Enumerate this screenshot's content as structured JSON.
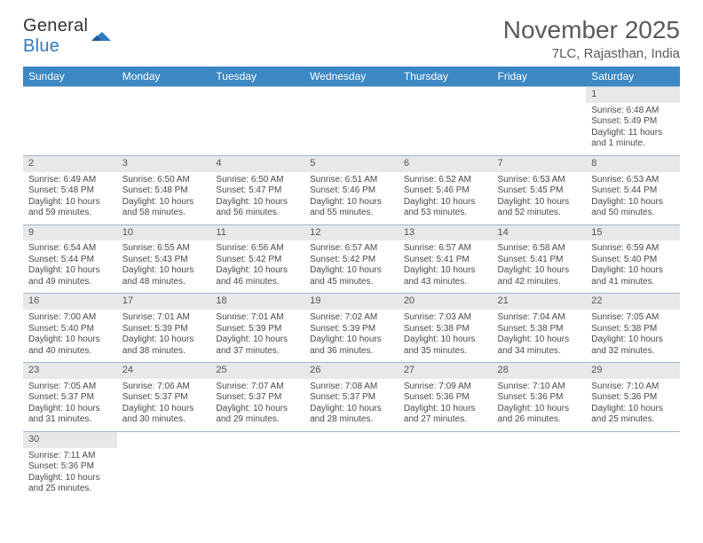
{
  "brand": {
    "general": "General",
    "blue": "Blue"
  },
  "header": {
    "title": "November 2025",
    "subtitle": "7LC, Rajasthan, India"
  },
  "colors": {
    "header_bg": "#3b88c4",
    "daynum_bg": "#e8e8e8",
    "rule": "#9db7cc",
    "text": "#4a4a4a"
  },
  "weekdays": [
    "Sunday",
    "Monday",
    "Tuesday",
    "Wednesday",
    "Thursday",
    "Friday",
    "Saturday"
  ],
  "weeks": [
    {
      "nums": [
        "",
        "",
        "",
        "",
        "",
        "",
        "1"
      ],
      "cells": [
        null,
        null,
        null,
        null,
        null,
        null,
        {
          "sunrise": "Sunrise: 6:48 AM",
          "sunset": "Sunset: 5:49 PM",
          "daylight": "Daylight: 11 hours and 1 minute."
        }
      ]
    },
    {
      "nums": [
        "2",
        "3",
        "4",
        "5",
        "6",
        "7",
        "8"
      ],
      "cells": [
        {
          "sunrise": "Sunrise: 6:49 AM",
          "sunset": "Sunset: 5:48 PM",
          "daylight": "Daylight: 10 hours and 59 minutes."
        },
        {
          "sunrise": "Sunrise: 6:50 AM",
          "sunset": "Sunset: 5:48 PM",
          "daylight": "Daylight: 10 hours and 58 minutes."
        },
        {
          "sunrise": "Sunrise: 6:50 AM",
          "sunset": "Sunset: 5:47 PM",
          "daylight": "Daylight: 10 hours and 56 minutes."
        },
        {
          "sunrise": "Sunrise: 6:51 AM",
          "sunset": "Sunset: 5:46 PM",
          "daylight": "Daylight: 10 hours and 55 minutes."
        },
        {
          "sunrise": "Sunrise: 6:52 AM",
          "sunset": "Sunset: 5:46 PM",
          "daylight": "Daylight: 10 hours and 53 minutes."
        },
        {
          "sunrise": "Sunrise: 6:53 AM",
          "sunset": "Sunset: 5:45 PM",
          "daylight": "Daylight: 10 hours and 52 minutes."
        },
        {
          "sunrise": "Sunrise: 6:53 AM",
          "sunset": "Sunset: 5:44 PM",
          "daylight": "Daylight: 10 hours and 50 minutes."
        }
      ]
    },
    {
      "nums": [
        "9",
        "10",
        "11",
        "12",
        "13",
        "14",
        "15"
      ],
      "cells": [
        {
          "sunrise": "Sunrise: 6:54 AM",
          "sunset": "Sunset: 5:44 PM",
          "daylight": "Daylight: 10 hours and 49 minutes."
        },
        {
          "sunrise": "Sunrise: 6:55 AM",
          "sunset": "Sunset: 5:43 PM",
          "daylight": "Daylight: 10 hours and 48 minutes."
        },
        {
          "sunrise": "Sunrise: 6:56 AM",
          "sunset": "Sunset: 5:42 PM",
          "daylight": "Daylight: 10 hours and 46 minutes."
        },
        {
          "sunrise": "Sunrise: 6:57 AM",
          "sunset": "Sunset: 5:42 PM",
          "daylight": "Daylight: 10 hours and 45 minutes."
        },
        {
          "sunrise": "Sunrise: 6:57 AM",
          "sunset": "Sunset: 5:41 PM",
          "daylight": "Daylight: 10 hours and 43 minutes."
        },
        {
          "sunrise": "Sunrise: 6:58 AM",
          "sunset": "Sunset: 5:41 PM",
          "daylight": "Daylight: 10 hours and 42 minutes."
        },
        {
          "sunrise": "Sunrise: 6:59 AM",
          "sunset": "Sunset: 5:40 PM",
          "daylight": "Daylight: 10 hours and 41 minutes."
        }
      ]
    },
    {
      "nums": [
        "16",
        "17",
        "18",
        "19",
        "20",
        "21",
        "22"
      ],
      "cells": [
        {
          "sunrise": "Sunrise: 7:00 AM",
          "sunset": "Sunset: 5:40 PM",
          "daylight": "Daylight: 10 hours and 40 minutes."
        },
        {
          "sunrise": "Sunrise: 7:01 AM",
          "sunset": "Sunset: 5:39 PM",
          "daylight": "Daylight: 10 hours and 38 minutes."
        },
        {
          "sunrise": "Sunrise: 7:01 AM",
          "sunset": "Sunset: 5:39 PM",
          "daylight": "Daylight: 10 hours and 37 minutes."
        },
        {
          "sunrise": "Sunrise: 7:02 AM",
          "sunset": "Sunset: 5:39 PM",
          "daylight": "Daylight: 10 hours and 36 minutes."
        },
        {
          "sunrise": "Sunrise: 7:03 AM",
          "sunset": "Sunset: 5:38 PM",
          "daylight": "Daylight: 10 hours and 35 minutes."
        },
        {
          "sunrise": "Sunrise: 7:04 AM",
          "sunset": "Sunset: 5:38 PM",
          "daylight": "Daylight: 10 hours and 34 minutes."
        },
        {
          "sunrise": "Sunrise: 7:05 AM",
          "sunset": "Sunset: 5:38 PM",
          "daylight": "Daylight: 10 hours and 32 minutes."
        }
      ]
    },
    {
      "nums": [
        "23",
        "24",
        "25",
        "26",
        "27",
        "28",
        "29"
      ],
      "cells": [
        {
          "sunrise": "Sunrise: 7:05 AM",
          "sunset": "Sunset: 5:37 PM",
          "daylight": "Daylight: 10 hours and 31 minutes."
        },
        {
          "sunrise": "Sunrise: 7:06 AM",
          "sunset": "Sunset: 5:37 PM",
          "daylight": "Daylight: 10 hours and 30 minutes."
        },
        {
          "sunrise": "Sunrise: 7:07 AM",
          "sunset": "Sunset: 5:37 PM",
          "daylight": "Daylight: 10 hours and 29 minutes."
        },
        {
          "sunrise": "Sunrise: 7:08 AM",
          "sunset": "Sunset: 5:37 PM",
          "daylight": "Daylight: 10 hours and 28 minutes."
        },
        {
          "sunrise": "Sunrise: 7:09 AM",
          "sunset": "Sunset: 5:36 PM",
          "daylight": "Daylight: 10 hours and 27 minutes."
        },
        {
          "sunrise": "Sunrise: 7:10 AM",
          "sunset": "Sunset: 5:36 PM",
          "daylight": "Daylight: 10 hours and 26 minutes."
        },
        {
          "sunrise": "Sunrise: 7:10 AM",
          "sunset": "Sunset: 5:36 PM",
          "daylight": "Daylight: 10 hours and 25 minutes."
        }
      ]
    },
    {
      "nums": [
        "30",
        "",
        "",
        "",
        "",
        "",
        ""
      ],
      "cells": [
        {
          "sunrise": "Sunrise: 7:11 AM",
          "sunset": "Sunset: 5:36 PM",
          "daylight": "Daylight: 10 hours and 25 minutes."
        },
        null,
        null,
        null,
        null,
        null,
        null
      ]
    }
  ]
}
